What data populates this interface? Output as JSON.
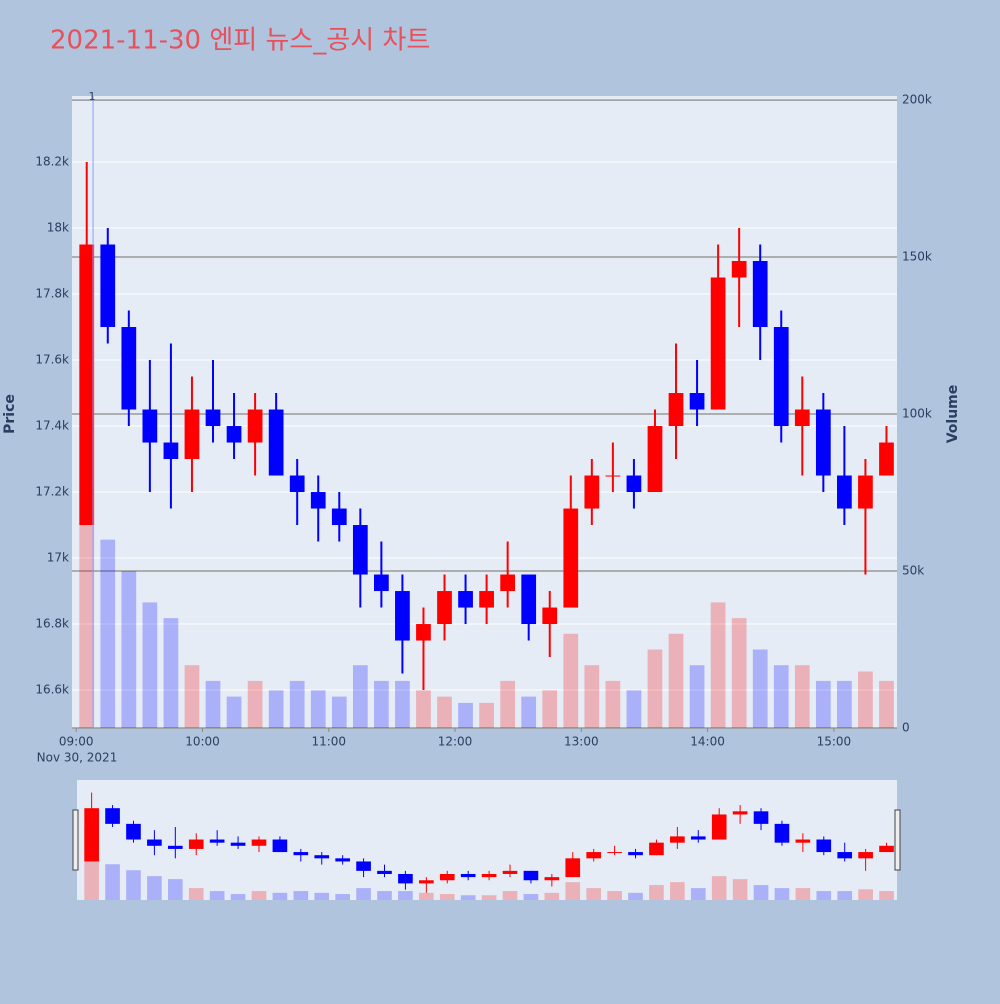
{
  "chart_data": {
    "type": "candlestick",
    "title": "2021-11-30 엔피 뉴스_공시 차트",
    "y_title": "Price",
    "y2_title": "Volume",
    "x_date_label": "Nov 30, 2021",
    "increasing_color": "#ff0000",
    "decreasing_color": "#0000ff",
    "x": [
      "09:00",
      "09:10",
      "09:20",
      "09:30",
      "09:40",
      "09:50",
      "10:00",
      "10:10",
      "10:20",
      "10:30",
      "10:40",
      "10:50",
      "11:00",
      "11:10",
      "11:20",
      "11:30",
      "11:40",
      "11:50",
      "12:00",
      "12:10",
      "12:20",
      "12:30",
      "12:40",
      "12:50",
      "13:00",
      "13:10",
      "13:20",
      "13:30",
      "13:40",
      "13:50",
      "14:00",
      "14:10",
      "14:20",
      "14:30",
      "14:40",
      "14:50",
      "15:00",
      "15:10",
      "15:20"
    ],
    "open": [
      17100,
      17950,
      17700,
      17450,
      17350,
      17300,
      17450,
      17400,
      17350,
      17450,
      17250,
      17200,
      17150,
      17100,
      16950,
      16900,
      16750,
      16800,
      16900,
      16850,
      16900,
      16950,
      16800,
      16850,
      17150,
      17250,
      17250,
      17200,
      17400,
      17500,
      17450,
      17850,
      17900,
      17700,
      17400,
      17450,
      17250,
      17150,
      17250
    ],
    "high": [
      18200,
      18000,
      17750,
      17600,
      17650,
      17550,
      17600,
      17500,
      17500,
      17500,
      17300,
      17250,
      17200,
      17150,
      17050,
      16950,
      16850,
      16950,
      16950,
      16950,
      17050,
      16950,
      16900,
      17250,
      17300,
      17350,
      17300,
      17450,
      17650,
      17600,
      17950,
      18000,
      17950,
      17750,
      17550,
      17500,
      17400,
      17300,
      17400
    ],
    "low": [
      17100,
      17650,
      17400,
      17200,
      17150,
      17200,
      17350,
      17300,
      17250,
      17250,
      17100,
      17050,
      17050,
      16850,
      16850,
      16650,
      16600,
      16750,
      16800,
      16800,
      16850,
      16750,
      16700,
      16850,
      17100,
      17200,
      17150,
      17200,
      17300,
      17400,
      17450,
      17700,
      17600,
      17350,
      17250,
      17200,
      17100,
      16950,
      17250
    ],
    "close": [
      17950,
      17700,
      17450,
      17350,
      17300,
      17450,
      17400,
      17350,
      17450,
      17250,
      17200,
      17150,
      17100,
      16950,
      16900,
      16750,
      16800,
      16900,
      16850,
      16900,
      16950,
      16800,
      16850,
      17150,
      17250,
      17250,
      17200,
      17400,
      17500,
      17450,
      17850,
      17900,
      17700,
      17400,
      17450,
      17250,
      17150,
      17250,
      17350
    ],
    "volume": [
      120000,
      60000,
      50000,
      40000,
      35000,
      20000,
      15000,
      10000,
      15000,
      12000,
      15000,
      12000,
      10000,
      20000,
      15000,
      15000,
      12000,
      10000,
      8000,
      8000,
      15000,
      10000,
      12000,
      30000,
      20000,
      15000,
      12000,
      25000,
      30000,
      20000,
      40000,
      35000,
      25000,
      20000,
      20000,
      15000,
      15000,
      18000,
      15000
    ],
    "annotations": [
      {
        "x": "09:08",
        "text": "1"
      }
    ],
    "xlim": [
      "08:58",
      "15:30"
    ],
    "xticks": [
      "09:00",
      "10:00",
      "11:00",
      "12:00",
      "13:00",
      "14:00",
      "15:00"
    ],
    "ylim": [
      16485,
      18400
    ],
    "yticks": [
      {
        "value": 16600,
        "label": "16.6k"
      },
      {
        "value": 16800,
        "label": "16.8k"
      },
      {
        "value": 17000,
        "label": "17k"
      },
      {
        "value": 17200,
        "label": "17.2k"
      },
      {
        "value": 17400,
        "label": "17.4k"
      },
      {
        "value": 17600,
        "label": "17.6k"
      },
      {
        "value": 17800,
        "label": "17.8k"
      },
      {
        "value": 18000,
        "label": "18k"
      },
      {
        "value": 18200,
        "label": "18.2k"
      }
    ],
    "y2lim": [
      0,
      201300
    ],
    "y2ticks": [
      0,
      {
        "value": 50000,
        "label": "50k"
      },
      {
        "value": 100000,
        "label": "100k"
      },
      {
        "value": 150000,
        "label": "150k"
      },
      {
        "value": 200000,
        "label": "200k"
      }
    ],
    "grid": true
  }
}
